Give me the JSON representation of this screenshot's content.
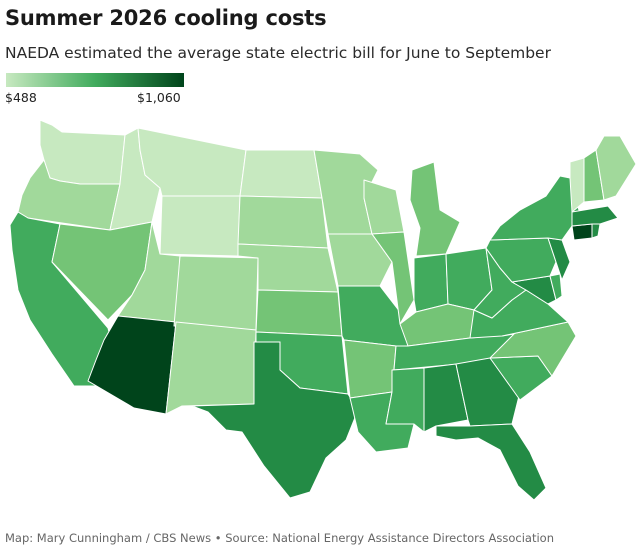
{
  "header": {
    "title": "Summer 2026 cooling costs",
    "subtitle": "NAEDA estimated the average state electric bill for June to September"
  },
  "legend": {
    "min_label": "$488",
    "max_label": "$1,060",
    "color_low": "#c7e9c0",
    "color_high": "#00441b"
  },
  "footer": {
    "credit": "Map: Mary Cunningham / CBS News • Source: National Energy Assistance Directors Association"
  },
  "colors": {
    "lightest": "#c7e9c0",
    "light": "#a1d99b",
    "mid_light": "#74c476",
    "mid": "#41ab5d",
    "mid_dark": "#238b45",
    "dark": "#006d2c",
    "darkest": "#00441b"
  },
  "states": [
    {
      "name": "Washington",
      "color": "#c7e9c0"
    },
    {
      "name": "Oregon",
      "color": "#a1d99b"
    },
    {
      "name": "California",
      "color": "#41ab5d"
    },
    {
      "name": "Idaho",
      "color": "#c7e9c0"
    },
    {
      "name": "Nevada",
      "color": "#74c476"
    },
    {
      "name": "Montana",
      "color": "#c7e9c0"
    },
    {
      "name": "Wyoming",
      "color": "#c7e9c0"
    },
    {
      "name": "Utah",
      "color": "#a1d99b"
    },
    {
      "name": "Arizona",
      "color": "#00441b"
    },
    {
      "name": "Colorado",
      "color": "#a1d99b"
    },
    {
      "name": "New Mexico",
      "color": "#a1d99b"
    },
    {
      "name": "North Dakota",
      "color": "#c7e9c0"
    },
    {
      "name": "South Dakota",
      "color": "#a1d99b"
    },
    {
      "name": "Nebraska",
      "color": "#a1d99b"
    },
    {
      "name": "Kansas",
      "color": "#74c476"
    },
    {
      "name": "Oklahoma",
      "color": "#41ab5d"
    },
    {
      "name": "Texas",
      "color": "#238b45"
    },
    {
      "name": "Minnesota",
      "color": "#a1d99b"
    },
    {
      "name": "Iowa",
      "color": "#a1d99b"
    },
    {
      "name": "Missouri",
      "color": "#41ab5d"
    },
    {
      "name": "Arkansas",
      "color": "#74c476"
    },
    {
      "name": "Louisiana",
      "color": "#41ab5d"
    },
    {
      "name": "Wisconsin",
      "color": "#a1d99b"
    },
    {
      "name": "Illinois",
      "color": "#74c476"
    },
    {
      "name": "Michigan",
      "color": "#74c476"
    },
    {
      "name": "Indiana",
      "color": "#41ab5d"
    },
    {
      "name": "Ohio",
      "color": "#41ab5d"
    },
    {
      "name": "Kentucky",
      "color": "#74c476"
    },
    {
      "name": "Tennessee",
      "color": "#41ab5d"
    },
    {
      "name": "Mississippi",
      "color": "#41ab5d"
    },
    {
      "name": "Alabama",
      "color": "#238b45"
    },
    {
      "name": "Georgia",
      "color": "#238b45"
    },
    {
      "name": "Florida",
      "color": "#238b45"
    },
    {
      "name": "South Carolina",
      "color": "#41ab5d"
    },
    {
      "name": "North Carolina",
      "color": "#74c476"
    },
    {
      "name": "Virginia",
      "color": "#41ab5d"
    },
    {
      "name": "West Virginia",
      "color": "#41ab5d"
    },
    {
      "name": "Maryland",
      "color": "#238b45"
    },
    {
      "name": "Delaware",
      "color": "#41ab5d"
    },
    {
      "name": "Pennsylvania",
      "color": "#41ab5d"
    },
    {
      "name": "New Jersey",
      "color": "#238b45"
    },
    {
      "name": "New York",
      "color": "#41ab5d"
    },
    {
      "name": "Connecticut",
      "color": "#00441b"
    },
    {
      "name": "Rhode Island",
      "color": "#238b45"
    },
    {
      "name": "Massachusetts",
      "color": "#238b45"
    },
    {
      "name": "Vermont",
      "color": "#c7e9c0"
    },
    {
      "name": "New Hampshire",
      "color": "#74c476"
    },
    {
      "name": "Maine",
      "color": "#a1d99b"
    }
  ]
}
